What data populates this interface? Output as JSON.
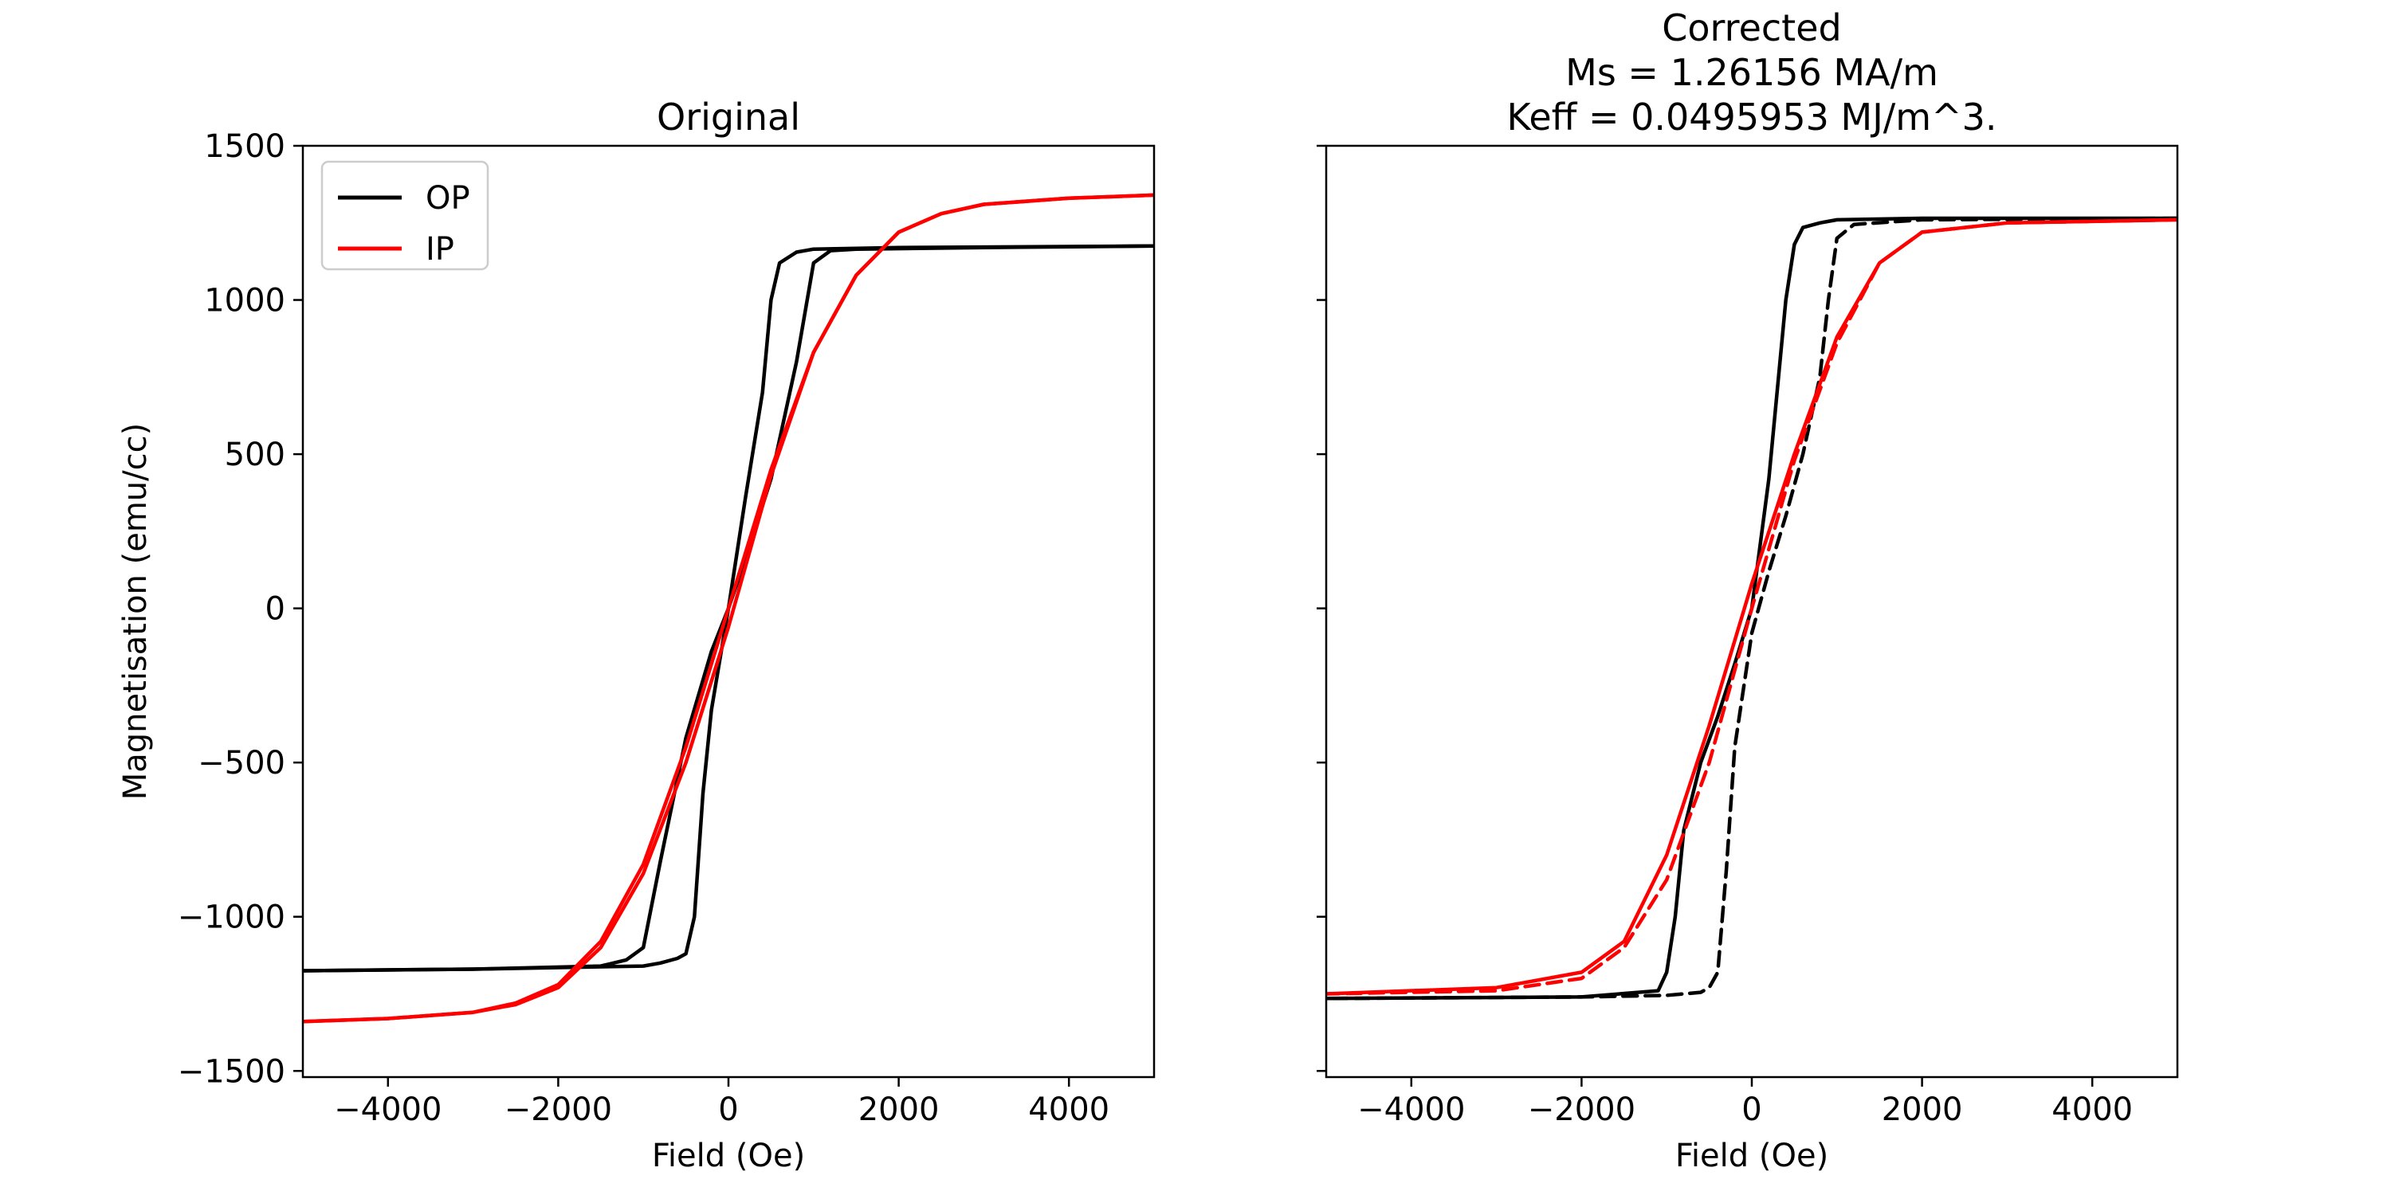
{
  "chart_data": [
    {
      "type": "line",
      "title": [
        "Original"
      ],
      "xlabel": "Field (Oe)",
      "ylabel": "Magnetisation (emu/cc)",
      "xlim": [
        -5000,
        5000
      ],
      "ylim": [
        -1520,
        1500
      ],
      "xticks": [
        -4000,
        -2000,
        0,
        2000,
        4000
      ],
      "xtick_labels": [
        "−4000",
        "−2000",
        "0",
        "2000",
        "4000"
      ],
      "yticks": [
        -1500,
        -1000,
        -500,
        0,
        500,
        1000,
        1500
      ],
      "ytick_labels": [
        "−1500",
        "−1000",
        "−500",
        "0",
        "500",
        "1000",
        "1500"
      ],
      "show_ytick_labels": true,
      "grid": false,
      "legend": {
        "placement": "upper-left",
        "entries": [
          {
            "label": "OP",
            "color": "#000000"
          },
          {
            "label": "IP",
            "color": "#ff0000"
          }
        ]
      },
      "series": [
        {
          "name": "OP",
          "color": "#000000",
          "dash": "solid",
          "x": [
            -5000,
            -3000,
            -1000,
            -800,
            -600,
            -500,
            -400,
            -300,
            -200,
            0,
            200,
            400,
            500,
            600,
            800,
            1000,
            2000,
            5000
          ],
          "y": [
            -1175,
            -1170,
            -1160,
            -1150,
            -1135,
            -1120,
            -1000,
            -600,
            -330,
            0,
            360,
            700,
            1000,
            1120,
            1155,
            1165,
            1170,
            1175
          ]
        },
        {
          "name": "OP",
          "color": "#000000",
          "dash": "solid",
          "x": [
            5000,
            3000,
            1500,
            1200,
            1000,
            800,
            500,
            200,
            0,
            -200,
            -500,
            -800,
            -1000,
            -1200,
            -1500,
            -3000,
            -5000
          ],
          "y": [
            1175,
            1170,
            1165,
            1160,
            1120,
            800,
            420,
            160,
            0,
            -140,
            -420,
            -820,
            -1100,
            -1140,
            -1160,
            -1170,
            -1175
          ]
        },
        {
          "name": "IP",
          "color": "#ff0000",
          "dash": "solid",
          "x": [
            -5000,
            -4000,
            -3000,
            -2500,
            -2000,
            -1500,
            -1000,
            -500,
            0,
            500,
            1000,
            1500,
            2000,
            2500,
            3000,
            4000,
            5000
          ],
          "y": [
            -1340,
            -1330,
            -1310,
            -1280,
            -1220,
            -1080,
            -830,
            -450,
            0,
            450,
            830,
            1080,
            1220,
            1280,
            1310,
            1330,
            1340
          ]
        },
        {
          "name": "IP",
          "color": "#ff0000",
          "dash": "solid",
          "x": [
            5000,
            4000,
            3000,
            2500,
            2000,
            1500,
            1000,
            500,
            0,
            -500,
            -1000,
            -1500,
            -2000,
            -2500,
            -3000,
            -4000,
            -5000
          ],
          "y": [
            1340,
            1330,
            1310,
            1280,
            1220,
            1080,
            830,
            430,
            -60,
            -500,
            -860,
            -1100,
            -1230,
            -1285,
            -1310,
            -1330,
            -1340
          ]
        }
      ]
    },
    {
      "type": "line",
      "title": [
        "Corrected",
        "Ms = 1.26156 MA/m",
        "Keff = 0.0495953 MJ/m^3."
      ],
      "xlabel": "Field (Oe)",
      "ylabel": "",
      "xlim": [
        -5000,
        5000
      ],
      "ylim": [
        -1520,
        1500
      ],
      "xticks": [
        -4000,
        -2000,
        0,
        2000,
        4000
      ],
      "xtick_labels": [
        "−4000",
        "−2000",
        "0",
        "2000",
        "4000"
      ],
      "yticks": [
        -1500,
        -1000,
        -500,
        0,
        500,
        1000,
        1500
      ],
      "ytick_labels": [],
      "show_ytick_labels": false,
      "grid": false,
      "series": [
        {
          "color": "#000000",
          "dash": "solid",
          "x": [
            -5000,
            -2000,
            -1100,
            -1000,
            -900,
            -800,
            -600,
            -400,
            -200,
            0,
            200,
            400,
            500,
            600,
            800,
            1000,
            2000,
            5000
          ],
          "y": [
            -1265,
            -1260,
            -1240,
            -1180,
            -1000,
            -720,
            -500,
            -350,
            -180,
            0,
            420,
            1000,
            1180,
            1235,
            1250,
            1260,
            1265,
            1265
          ]
        },
        {
          "color": "#000000",
          "dash": "dashed",
          "x": [
            5000,
            2000,
            1200,
            1000,
            900,
            800,
            600,
            400,
            200,
            0,
            -200,
            -300,
            -400,
            -500,
            -600,
            -1000,
            -2000,
            -5000
          ],
          "y": [
            1265,
            1260,
            1245,
            1200,
            1000,
            750,
            500,
            300,
            120,
            -80,
            -450,
            -850,
            -1180,
            -1230,
            -1245,
            -1255,
            -1260,
            -1265
          ]
        },
        {
          "color": "#ff0000",
          "dash": "solid",
          "x": [
            -5000,
            -3000,
            -2000,
            -1500,
            -1000,
            -500,
            0,
            500,
            1000,
            1500,
            2000,
            3000,
            5000
          ],
          "y": [
            -1250,
            -1230,
            -1180,
            -1080,
            -800,
            -380,
            80,
            500,
            880,
            1120,
            1220,
            1250,
            1260
          ]
        },
        {
          "color": "#ff0000",
          "dash": "dashed",
          "x": [
            5000,
            3000,
            2000,
            1500,
            1000,
            500,
            0,
            -500,
            -1000,
            -1500,
            -2000,
            -3000,
            -5000
          ],
          "y": [
            1260,
            1250,
            1220,
            1120,
            860,
            480,
            0,
            -500,
            -880,
            -1100,
            -1200,
            -1240,
            -1250
          ]
        }
      ]
    }
  ]
}
